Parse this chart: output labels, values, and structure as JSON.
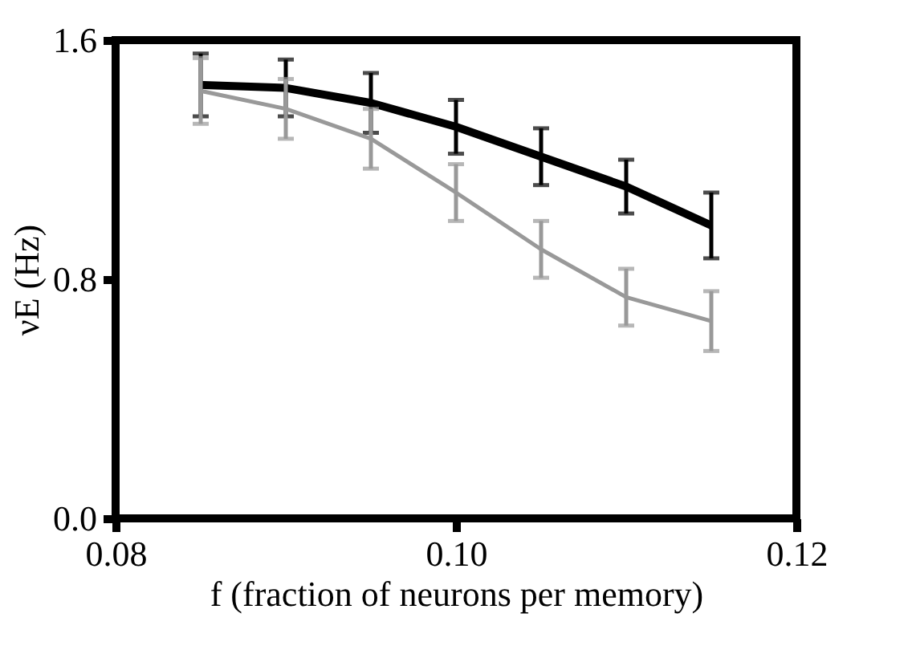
{
  "chart_data": {
    "type": "line",
    "xlabel": "f (fraction of neurons per memory)",
    "ylabel": "νE (Hz)",
    "x": [
      0.085,
      0.09,
      0.095,
      0.1,
      0.105,
      0.11,
      0.115
    ],
    "series": [
      {
        "color": "#000000",
        "values": [
          1.45,
          1.44,
          1.39,
          1.31,
          1.21,
          1.11,
          0.98
        ],
        "errors": [
          0.105,
          0.095,
          0.1,
          0.09,
          0.095,
          0.09,
          0.11
        ]
      },
      {
        "color": "#999999",
        "values": [
          1.43,
          1.37,
          1.27,
          1.09,
          0.9,
          0.74,
          0.66
        ],
        "errors": [
          0.11,
          0.1,
          0.1,
          0.095,
          0.095,
          0.095,
          0.1
        ]
      }
    ],
    "xlim": [
      0.08,
      0.12
    ],
    "xticks": [
      {
        "value": 0.08,
        "label": "0.08"
      },
      {
        "value": 0.1,
        "label": "0.10"
      },
      {
        "value": 0.12,
        "label": "0.12"
      }
    ],
    "ylim": [
      0,
      1.6
    ],
    "yticks": [
      {
        "value": 0,
        "label": "0.0"
      },
      {
        "value": 0.8,
        "label": "0.8"
      },
      {
        "value": 1.6,
        "label": "1.6"
      }
    ],
    "grid": false,
    "marker": "none",
    "line_style": "solid"
  }
}
